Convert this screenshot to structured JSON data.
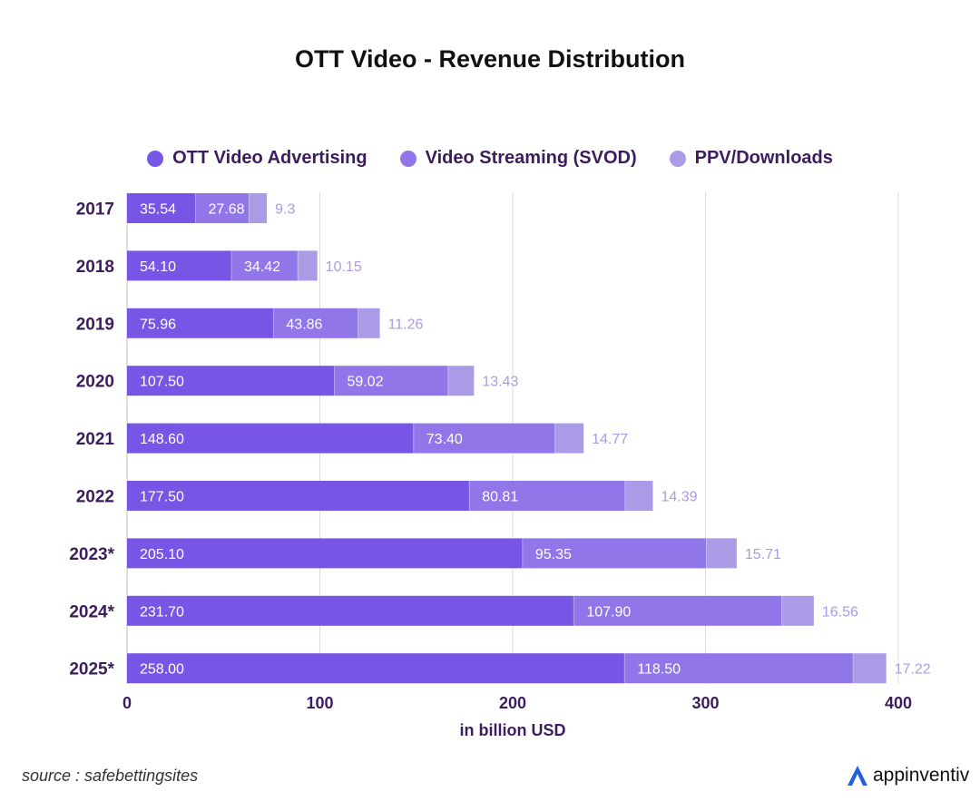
{
  "title": "OTT Video - Revenue Distribution",
  "legend": [
    {
      "label": "OTT Video Advertising",
      "color": "#7756e6"
    },
    {
      "label": "Video Streaming (SVOD)",
      "color": "#9076e8"
    },
    {
      "label": "PPV/Downloads",
      "color": "#ab9ae6"
    }
  ],
  "chart_data": {
    "type": "bar",
    "orientation": "horizontal",
    "stacked": true,
    "title": "OTT Video - Revenue Distribution",
    "xlabel": "in billion USD",
    "ylabel": "",
    "xlim": [
      0,
      400
    ],
    "x_ticks": [
      "0",
      "100",
      "200",
      "300",
      "400"
    ],
    "grid": true,
    "legend_position": "top",
    "categories": [
      "2017",
      "2018",
      "2019",
      "2020",
      "2021",
      "2022",
      "2023*",
      "2024*",
      "2025*"
    ],
    "series": [
      {
        "name": "OTT Video Advertising",
        "color": "#7756e6",
        "values": [
          35.54,
          54.1,
          75.96,
          107.5,
          148.6,
          177.5,
          205.1,
          231.7,
          258.0
        ],
        "labels": [
          "35.54",
          "54.10",
          "75.96",
          "107.50",
          "148.60",
          "177.50",
          "205.10",
          "231.70",
          "258.00"
        ]
      },
      {
        "name": "Video Streaming (SVOD)",
        "color": "#9076e8",
        "values": [
          27.68,
          34.42,
          43.86,
          59.02,
          73.4,
          80.81,
          95.35,
          107.9,
          118.5
        ],
        "labels": [
          "27.68",
          "34.42",
          "43.86",
          "59.02",
          "73.40",
          "80.81",
          "95.35",
          "107.90",
          "118.50"
        ]
      },
      {
        "name": "PPV/Downloads",
        "color": "#ab9ae6",
        "values": [
          9.3,
          10.15,
          11.26,
          13.43,
          14.77,
          14.39,
          15.71,
          16.56,
          17.22
        ],
        "labels": [
          "9.3",
          "10.15",
          "11.26",
          "13.43",
          "14.77",
          "14.39",
          "15.71",
          "16.56",
          "17.22"
        ]
      }
    ]
  },
  "footer": {
    "source": "source : safebettingsites",
    "brand": "appinventiv",
    "brand_icon": "appinventiv-logo-icon"
  }
}
